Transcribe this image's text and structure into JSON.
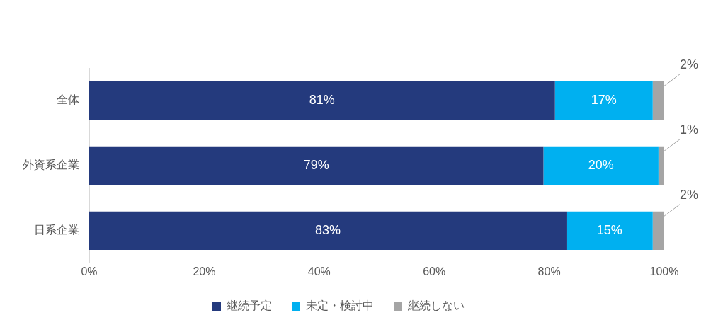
{
  "chart_data": {
    "type": "bar",
    "orientation": "horizontal",
    "stacked": true,
    "categories": [
      "全体",
      "外資系企業",
      "日系企業"
    ],
    "series": [
      {
        "name": "継続予定",
        "color": "#243a7d",
        "values": [
          81,
          79,
          83
        ],
        "value_labels": [
          "81%",
          "79%",
          "83%"
        ]
      },
      {
        "name": "未定・検討中",
        "color": "#00b0f0",
        "values": [
          17,
          20,
          15
        ],
        "value_labels": [
          "17%",
          "20%",
          "15%"
        ]
      },
      {
        "name": "継続しない",
        "color": "#a5a5a5",
        "values": [
          2,
          1,
          2
        ],
        "value_labels": [
          "2%",
          "1%",
          "2%"
        ]
      }
    ],
    "xlim": [
      0,
      100
    ],
    "xticks": [
      {
        "value": 0,
        "label": "0%"
      },
      {
        "value": 20,
        "label": "20%"
      },
      {
        "value": 40,
        "label": "40%"
      },
      {
        "value": 60,
        "label": "60%"
      },
      {
        "value": 80,
        "label": "80%"
      },
      {
        "value": 100,
        "label": "100%"
      }
    ],
    "grid": false,
    "legend": "bottom"
  }
}
